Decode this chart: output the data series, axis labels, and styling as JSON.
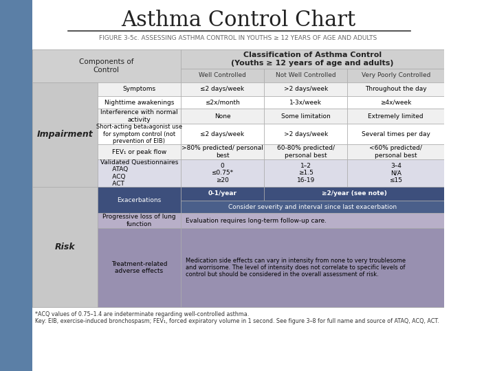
{
  "title": "Asthma Control Chart",
  "subtitle": "FIGURE 3-5c. ASSESSING ASTHMA CONTROL IN YOUTHS ≥ 12 YEARS OF AGE AND ADULTS",
  "left_sidebar_color": "#5b7fa6",
  "footnote": "*ACQ values of 0.75–1.4 are indeterminate regarding well-controlled asthma.\nKey: EIB, exercise-induced bronchospasm; FEV₁, forced expiratory volume in 1 second. See figure 3–8 for full name and source of ATAQ, ACQ, ACT."
}
